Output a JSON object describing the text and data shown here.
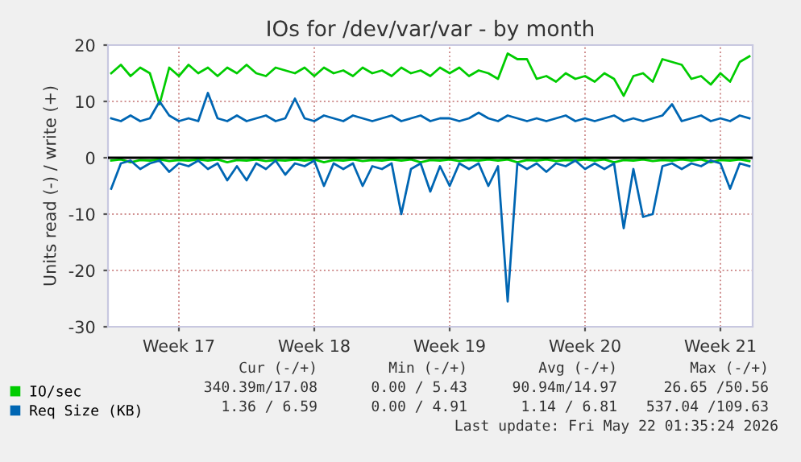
{
  "chart_data": {
    "type": "line",
    "title": "IOs for /dev/var/var - by month",
    "ylabel": "Units read (-) / write (+)",
    "x": [
      "2026-04-20T00:00",
      "2026-04-20T12:00",
      "2026-04-21T00:00",
      "2026-04-21T12:00",
      "2026-04-22T00:00",
      "2026-04-22T12:00",
      "2026-04-23T00:00",
      "2026-04-23T12:00",
      "2026-04-24T00:00",
      "2026-04-24T12:00",
      "2026-04-25T00:00",
      "2026-04-25T12:00",
      "2026-04-26T00:00",
      "2026-04-26T12:00",
      "2026-04-27T00:00",
      "2026-04-27T12:00",
      "2026-04-28T00:00",
      "2026-04-28T12:00",
      "2026-04-29T00:00",
      "2026-04-29T12:00",
      "2026-04-30T00:00",
      "2026-04-30T12:00",
      "2026-05-01T00:00",
      "2026-05-01T12:00",
      "2026-05-02T00:00",
      "2026-05-02T12:00",
      "2026-05-03T00:00",
      "2026-05-03T12:00",
      "2026-05-04T00:00",
      "2026-05-04T12:00",
      "2026-05-05T00:00",
      "2026-05-05T12:00",
      "2026-05-06T00:00",
      "2026-05-06T12:00",
      "2026-05-07T00:00",
      "2026-05-07T12:00",
      "2026-05-08T00:00",
      "2026-05-08T12:00",
      "2026-05-09T00:00",
      "2026-05-09T12:00",
      "2026-05-10T00:00",
      "2026-05-10T12:00",
      "2026-05-11T00:00",
      "2026-05-11T12:00",
      "2026-05-12T00:00",
      "2026-05-12T12:00",
      "2026-05-13T00:00",
      "2026-05-13T12:00",
      "2026-05-14T00:00",
      "2026-05-14T12:00",
      "2026-05-15T00:00",
      "2026-05-15T12:00",
      "2026-05-16T00:00",
      "2026-05-16T12:00",
      "2026-05-17T00:00",
      "2026-05-17T12:00",
      "2026-05-18T00:00",
      "2026-05-18T12:00",
      "2026-05-19T00:00",
      "2026-05-19T12:00",
      "2026-05-20T00:00",
      "2026-05-20T12:00",
      "2026-05-21T00:00",
      "2026-05-21T12:00",
      "2026-05-22T00:00",
      "2026-05-22T12:00",
      "2026-05-23T00:00"
    ],
    "series": [
      {
        "name": "IO/sec",
        "color": "#00cc00",
        "values": [
          15,
          16.5,
          14.5,
          16,
          15,
          9.5,
          16,
          14.5,
          16.5,
          15,
          16,
          14.5,
          16,
          15,
          16.5,
          15,
          14.5,
          16,
          15.5,
          15,
          16,
          14.5,
          16,
          15,
          15.5,
          14.5,
          16,
          15,
          15.5,
          14.5,
          16,
          15,
          15.5,
          14.5,
          16,
          15,
          16,
          14.5,
          15.5,
          15,
          14,
          18.5,
          17.5,
          17.5,
          14,
          14.5,
          13.5,
          15,
          14,
          14.5,
          13.5,
          15,
          14,
          11,
          14.5,
          15,
          13.5,
          17.5,
          17,
          16.5,
          14,
          14.5,
          13,
          15,
          13.5,
          17,
          18
        ]
      },
      {
        "color": "#00cc00",
        "values": [
          -0.5,
          -0.3,
          -0.8,
          -0.4,
          -0.5,
          -0.3,
          -0.6,
          -0.4,
          -0.5,
          -0.3,
          -0.5,
          -0.3,
          -0.8,
          -0.4,
          -0.5,
          -0.3,
          -0.6,
          -0.4,
          -0.5,
          -0.3,
          -0.5,
          -0.3,
          -0.8,
          -0.4,
          -0.5,
          -0.3,
          -0.6,
          -0.4,
          -0.5,
          -0.3,
          -0.5,
          -0.3,
          -0.8,
          -0.4,
          -0.5,
          -0.3,
          -0.6,
          -0.4,
          -0.5,
          -0.3,
          -0.5,
          -0.3,
          -0.8,
          -0.4,
          -0.5,
          -0.3,
          -0.6,
          -0.4,
          -0.5,
          -0.3,
          -0.5,
          -0.3,
          -0.8,
          -0.4,
          -0.5,
          -0.3,
          -0.6,
          -0.4,
          -0.5,
          -0.3,
          -0.5,
          -0.3,
          -0.8,
          -0.4,
          -0.5,
          -0.3,
          -0.6
        ]
      },
      {
        "name": "Req Size (KB)",
        "color": "#0066b3",
        "values": [
          7,
          6.5,
          7.5,
          6.5,
          7,
          10,
          7.5,
          6.5,
          7,
          6.5,
          11.5,
          7,
          6.5,
          7.5,
          6.5,
          7,
          7.5,
          6.5,
          7,
          10.5,
          7,
          6.5,
          7.5,
          7,
          6.5,
          7.5,
          7,
          6.5,
          7,
          7.5,
          6.5,
          7,
          7.5,
          6.5,
          7,
          7,
          6.5,
          7,
          8,
          7,
          6.5,
          7.5,
          7,
          6.5,
          7,
          6.5,
          7,
          7.5,
          6.5,
          7,
          6.5,
          7,
          7.5,
          6.5,
          7,
          6.5,
          7,
          7.5,
          9.5,
          6.5,
          7,
          7.5,
          6.5,
          7,
          6.5,
          7.5,
          7
        ]
      },
      {
        "color": "#0066b3",
        "values": [
          -5.5,
          -1,
          -0.5,
          -2,
          -1,
          -0.5,
          -2.5,
          -1,
          -1.5,
          -0.5,
          -2,
          -1,
          -4,
          -1.5,
          -4,
          -1,
          -2,
          -0.5,
          -3,
          -1,
          -1.5,
          -0.5,
          -5,
          -1,
          -2,
          -1,
          -5,
          -1.5,
          -2,
          -1,
          -10,
          -2,
          -1,
          -6,
          -1.5,
          -5,
          -1,
          -2,
          -1,
          -5,
          -1.5,
          -25.5,
          -1,
          -2,
          -1,
          -2.5,
          -1,
          -1.5,
          -0.5,
          -2,
          -1,
          -2,
          -1,
          -12.5,
          -2,
          -10.5,
          -10,
          -1.5,
          -1,
          -2,
          -1,
          -1.5,
          -0.5,
          -1,
          -5.5,
          -1,
          -1.5
        ]
      }
    ],
    "xlim": [
      "2026-04-19T20:00",
      "2026-05-23T04:00"
    ],
    "xticks": [
      {
        "value": "2026-04-23T12:00",
        "label": "Week 17"
      },
      {
        "value": "2026-04-30T12:00",
        "label": "Week 18"
      },
      {
        "value": "2026-05-07T12:00",
        "label": "Week 19"
      },
      {
        "value": "2026-05-14T12:00",
        "label": "Week 20"
      },
      {
        "value": "2026-05-21T12:00",
        "label": "Week 21"
      }
    ],
    "ylim": [
      -30,
      20
    ],
    "yticks": [
      -30,
      -20,
      -10,
      0,
      10,
      20
    ],
    "ref_lines": [
      {
        "axis": "y",
        "value": 0,
        "color": "#000000"
      }
    ],
    "grid": true,
    "legend": "bottom",
    "marker": "none",
    "line_style": "solid",
    "annotations": [
      "Cur (-/+)",
      "Min (-/+)",
      "Avg (-/+)",
      "Max (-/+)",
      "340.39m/17.08",
      "0.00 / 5.43",
      "90.94m/14.97",
      "26.65 /50.56",
      "1.36 / 6.59",
      "0.00 / 4.91",
      "1.14 / 6.81",
      "537.04 /109.63",
      "Last update: Fri May 22 01:35:24 2026"
    ]
  }
}
